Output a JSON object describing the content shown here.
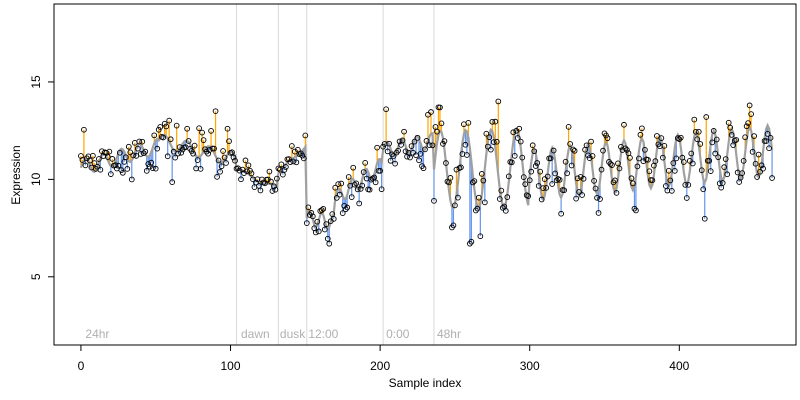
{
  "chart_data": {
    "type": "scatter",
    "title": "",
    "xlabel": "Sample index",
    "ylabel": "Expression",
    "xlim": [
      -18,
      478
    ],
    "ylim": [
      1.5,
      19
    ],
    "x_ticks": [
      0,
      100,
      200,
      300,
      400
    ],
    "y_ticks": [
      5,
      10,
      15
    ],
    "grid": false,
    "legend": "none",
    "colors": {
      "fit_line": "#a0a0a0",
      "residual_above": "#ffa500",
      "residual_below": "#6495ed",
      "points": "#000000",
      "phase_line": "#d9d9d9",
      "phase_text": "#b0b0b0"
    },
    "phase_boundaries": [
      104,
      132,
      151,
      202,
      236
    ],
    "phase_labels": [
      {
        "x": 3,
        "text": "24hr"
      },
      {
        "x": 107,
        "text": "dawn"
      },
      {
        "x": 133,
        "text": "dusk"
      },
      {
        "x": 152,
        "text": "12:00"
      },
      {
        "x": 204,
        "text": "0:00"
      },
      {
        "x": 238,
        "text": "48hr"
      }
    ],
    "segments": [
      {
        "x0": 0,
        "x1": 52,
        "y0": 10.6,
        "y1": 11.7,
        "amp": 0.4,
        "period": 12,
        "noise": 0.55
      },
      {
        "x0": 52,
        "x1": 104,
        "y0": 12.0,
        "y1": 11.0,
        "amp": 0.35,
        "period": 15,
        "noise": 0.7
      },
      {
        "x0": 104,
        "x1": 132,
        "y0": 10.5,
        "y1": 9.5,
        "amp": 0.1,
        "period": 20,
        "noise": 0.25
      },
      {
        "x0": 132,
        "x1": 151,
        "y0": 10.3,
        "y1": 11.8,
        "amp": 0.1,
        "period": 20,
        "noise": 0.3
      },
      {
        "x0": 151,
        "x1": 170,
        "y0": 8.0,
        "y1": 7.8,
        "amp": 0.4,
        "period": 8,
        "noise": 0.4
      },
      {
        "x0": 170,
        "x1": 202,
        "y0": 9.0,
        "y1": 10.8,
        "amp": 0.4,
        "period": 9,
        "noise": 0.5
      },
      {
        "x0": 202,
        "x1": 236,
        "y0": 11.5,
        "y1": 12.0,
        "amp": 0.4,
        "period": 10,
        "noise": 0.5
      },
      {
        "x0": 236,
        "x1": 300,
        "y0": 10.5,
        "y1": 10.6,
        "amp": 2.0,
        "period": 17,
        "noise": 0.8
      },
      {
        "x0": 300,
        "x1": 463,
        "y0": 10.2,
        "y1": 11.5,
        "amp": 1.3,
        "period": 12,
        "noise": 0.6
      }
    ]
  }
}
